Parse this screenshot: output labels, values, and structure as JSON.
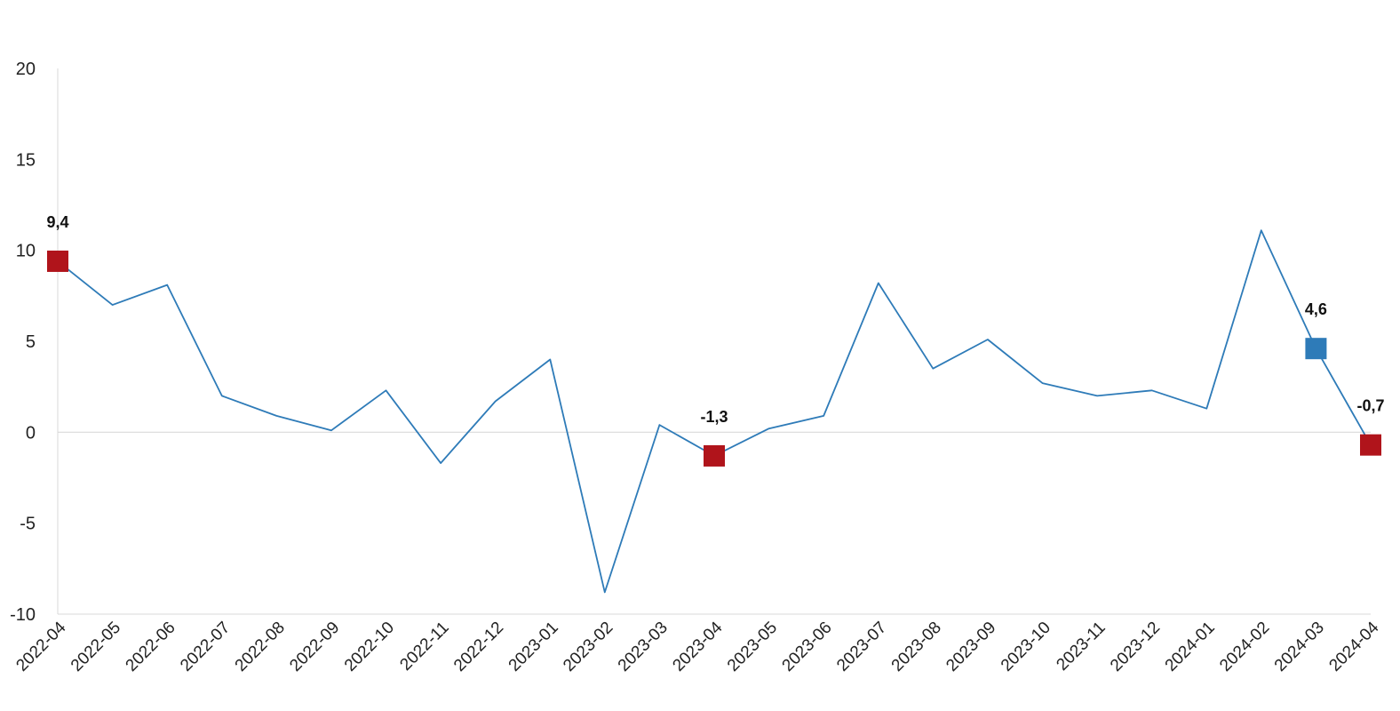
{
  "chart_data": {
    "type": "line",
    "title": "",
    "xlabel": "",
    "ylabel": "",
    "ylim": [
      -10,
      20
    ],
    "yticks": [
      -10,
      -5,
      0,
      5,
      10,
      15,
      20
    ],
    "grid": false,
    "legend": "none",
    "categories": [
      "2022-04",
      "2022-05",
      "2022-06",
      "2022-07",
      "2022-08",
      "2022-09",
      "2022-10",
      "2022-11",
      "2022-12",
      "2023-01",
      "2023-02",
      "2023-03",
      "2023-04",
      "2023-05",
      "2023-06",
      "2023-07",
      "2023-08",
      "2023-09",
      "2023-10",
      "2023-11",
      "2023-12",
      "2024-01",
      "2024-02",
      "2024-03",
      "2024-04"
    ],
    "series": [
      {
        "color": "#2e7bb8",
        "values": [
          9.4,
          7.0,
          8.1,
          2.0,
          0.9,
          0.1,
          2.3,
          -1.7,
          1.7,
          4.0,
          -8.8,
          0.4,
          -1.3,
          0.2,
          0.9,
          8.2,
          3.5,
          5.1,
          2.7,
          2.0,
          2.3,
          1.3,
          11.1,
          4.6,
          -0.7
        ]
      }
    ],
    "highlights": [
      {
        "index": 0,
        "label": "9,4",
        "color": "#b0141b"
      },
      {
        "index": 12,
        "label": "-1,3",
        "color": "#b0141b"
      },
      {
        "index": 23,
        "label": "4,6",
        "color": "#2e7bb8"
      },
      {
        "index": 24,
        "label": "-0,7",
        "color": "#b0141b"
      }
    ]
  }
}
